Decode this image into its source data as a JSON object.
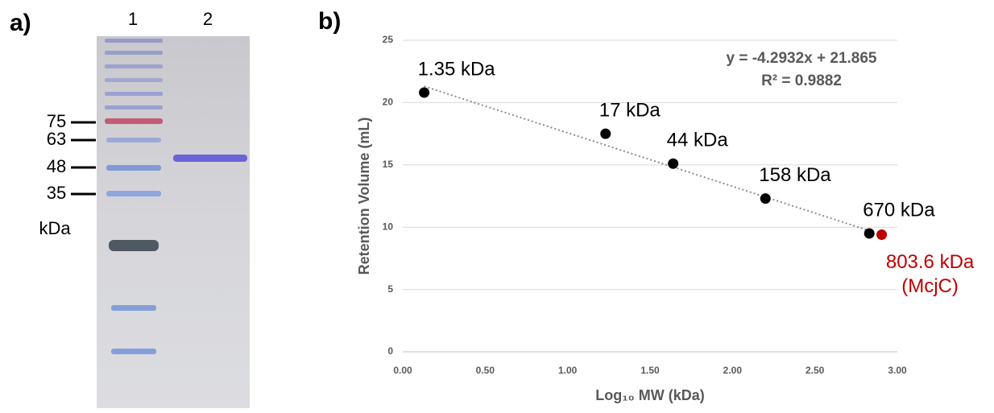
{
  "gel": {
    "panel_label": "a)",
    "lanes": [
      "1",
      "2"
    ],
    "markers": [
      75,
      63,
      48,
      35
    ],
    "marker_unit": "kDa"
  },
  "chart_data": {
    "type": "scatter",
    "panel_label": "b)",
    "xlabel": "Log₁₀ MW (kDa)",
    "ylabel": "Retention Volume (mL)",
    "xlim": [
      0,
      3
    ],
    "xticks": [
      {
        "value": 0,
        "label": "0.00"
      },
      {
        "value": 0.5,
        "label": "0.50"
      },
      {
        "value": 1,
        "label": "1.00"
      },
      {
        "value": 1.5,
        "label": "1.50"
      },
      {
        "value": 2,
        "label": "2.00"
      },
      {
        "value": 2.5,
        "label": "2.50"
      },
      {
        "value": 3,
        "label": "3.00"
      }
    ],
    "ylim": [
      0,
      25
    ],
    "yticks": [
      0,
      5,
      10,
      15,
      20,
      25
    ],
    "grid": true,
    "series": [
      {
        "color": "#000000",
        "x": [
          0.13,
          1.23,
          1.64,
          2.2,
          2.83
        ],
        "values": [
          20.8,
          17.5,
          15.1,
          12.3,
          9.5
        ],
        "point_labels": [
          "1.35 kDa",
          "17 kDa",
          "44 kDa",
          "158 kDa",
          "670 kDa"
        ]
      },
      {
        "color": "#c00000",
        "x": [
          2.905
        ],
        "values": [
          9.4
        ],
        "point_labels": [
          [
            "803.6 kDa",
            "(McjC)"
          ]
        ]
      }
    ],
    "trendline": {
      "slope": -4.2932,
      "intercept": 21.865,
      "labels": [
        "y = -4.2932x + 21.865",
        "R² = 0.9882"
      ]
    }
  }
}
